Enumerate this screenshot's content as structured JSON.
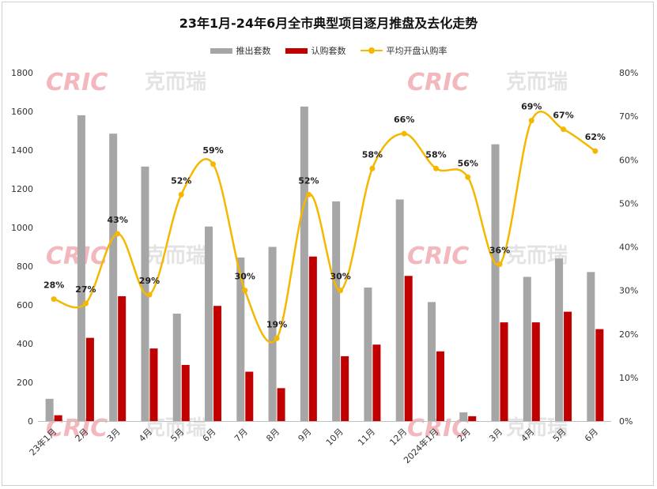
{
  "chart_data": {
    "type": "bar",
    "title": "23年1月-24年6月全市典型项目逐月推盘及去化走势",
    "categories": [
      "23年1月",
      "2月",
      "3月",
      "4月",
      "5月",
      "6月",
      "7月",
      "8月",
      "9月",
      "10月",
      "11月",
      "12月",
      "2024年1月",
      "2月",
      "3月",
      "4月",
      "5月",
      "6月"
    ],
    "series": [
      {
        "name": "推出套数",
        "type": "bar",
        "axis": "left",
        "color": "#a6a6a6",
        "values": [
          115,
          1580,
          1485,
          1315,
          555,
          1005,
          845,
          900,
          1625,
          1135,
          690,
          1145,
          615,
          45,
          1430,
          745,
          840,
          770
        ]
      },
      {
        "name": "认购套数",
        "type": "bar",
        "axis": "right-count",
        "color": "#c00000",
        "values": [
          30,
          430,
          645,
          375,
          290,
          595,
          255,
          170,
          850,
          335,
          395,
          750,
          360,
          25,
          510,
          510,
          565,
          475
        ]
      },
      {
        "name": "平均开盘认购率",
        "type": "line",
        "axis": "right",
        "color": "#f5b800",
        "values": [
          28,
          27,
          43,
          29,
          52,
          59,
          30,
          19,
          52,
          30,
          58,
          66,
          58,
          56,
          36,
          69,
          67,
          62
        ],
        "labels": [
          "28%",
          "27%",
          "43%",
          "29%",
          "52%",
          "59%",
          "30%",
          "19%",
          "52%",
          "30%",
          "58%",
          "66%",
          "58%",
          "56%",
          "36%",
          "69%",
          "67%",
          "62%"
        ]
      }
    ],
    "ylim": [
      0,
      1800
    ],
    "yticks": [
      "0",
      "200",
      "400",
      "600",
      "800",
      "1000",
      "1200",
      "1400",
      "1600",
      "1800"
    ],
    "y2lim": [
      0,
      80
    ],
    "y2ticks": [
      "0%",
      "10%",
      "20%",
      "30%",
      "40%",
      "50%",
      "60%",
      "70%",
      "80%"
    ],
    "grid": false,
    "legend_position": "top"
  },
  "watermark": {
    "latin": "CRIC",
    "chinese": "克而瑞"
  },
  "colors": {
    "bar1": "#a6a6a6",
    "bar2": "#c00000",
    "line": "#f5b800"
  }
}
